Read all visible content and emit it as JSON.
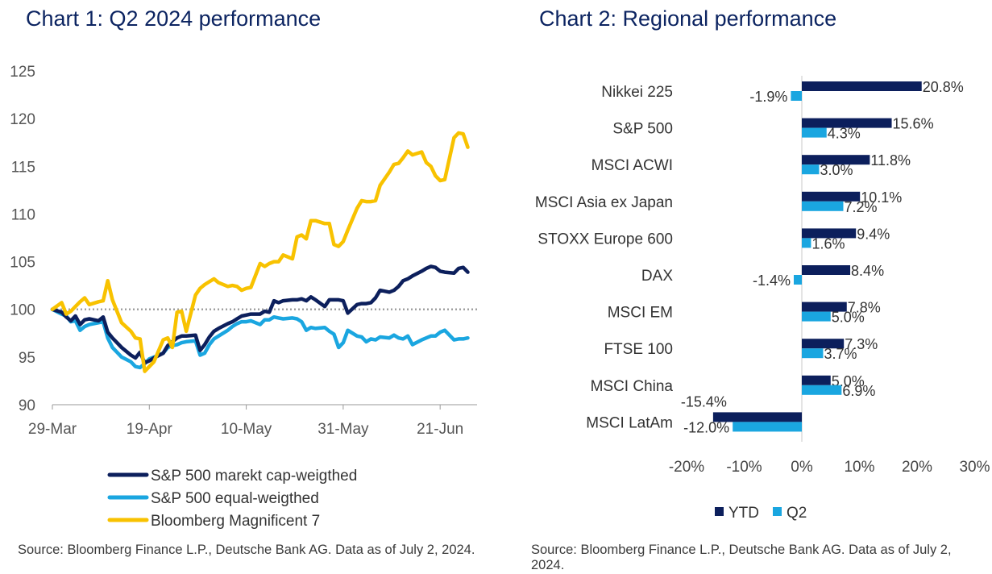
{
  "chart_data": [
    {
      "type": "line",
      "title": "Chart 1: Q2 2024 performance",
      "xlabel": "",
      "ylabel": "",
      "ylim": [
        90,
        125
      ],
      "yticks": [
        "125",
        "120",
        "115",
        "110",
        "105",
        "100",
        "95",
        "90"
      ],
      "xticks": [
        "29-Mar",
        "19-Apr",
        "10-May",
        "31-May",
        "21-Jun"
      ],
      "x_range_days": [
        0,
        92
      ],
      "x_tick_days": [
        0,
        21,
        42,
        63,
        84
      ],
      "reference_line": 100,
      "legend_position": "bottom",
      "series": [
        {
          "name": "S&P 500 marekt cap-weigthed",
          "color": "#0c1f5c",
          "x_days": [
            0,
            2,
            3,
            4,
            5,
            6,
            7,
            8,
            10,
            11,
            12,
            13,
            14,
            15,
            17,
            18,
            19,
            20,
            21,
            22,
            24,
            25,
            26,
            27,
            28,
            29,
            31,
            32,
            33,
            34,
            35,
            36,
            38,
            39,
            40,
            41,
            42,
            43,
            45,
            46,
            47,
            48,
            49,
            50,
            52,
            53,
            54,
            55,
            56,
            57,
            59,
            60,
            61,
            62,
            63,
            64,
            66,
            67,
            68,
            69,
            70,
            71,
            73,
            74,
            75,
            76,
            77,
            78,
            80,
            81,
            82,
            83,
            84,
            85,
            87,
            88,
            89,
            90
          ],
          "values": [
            100.0,
            99.7,
            99.2,
            98.8,
            99.3,
            98.4,
            98.9,
            99.0,
            98.8,
            99.2,
            97.6,
            97.0,
            96.5,
            96.0,
            95.2,
            94.9,
            95.5,
            94.4,
            94.6,
            94.9,
            95.4,
            96.2,
            96.6,
            97.0,
            97.2,
            97.2,
            97.3,
            95.7,
            96.3,
            97.1,
            97.7,
            98.0,
            98.5,
            98.7,
            99.0,
            99.3,
            99.4,
            99.5,
            99.5,
            99.8,
            99.7,
            100.9,
            100.7,
            100.9,
            101.0,
            101.0,
            101.1,
            100.9,
            101.3,
            101.0,
            100.3,
            101.0,
            101.0,
            101.0,
            100.9,
            99.6,
            100.5,
            100.6,
            100.6,
            100.7,
            101.2,
            102.0,
            101.8,
            102.0,
            102.4,
            103.0,
            103.2,
            103.5,
            104.0,
            104.3,
            104.5,
            104.4,
            104.0,
            103.9,
            103.8,
            104.3,
            104.4,
            103.9
          ]
        },
        {
          "name": "S&P 500 equal-weigthed",
          "color": "#1aa6e0",
          "x_days": [
            0,
            2,
            3,
            4,
            5,
            6,
            7,
            8,
            10,
            11,
            12,
            13,
            14,
            15,
            17,
            18,
            19,
            20,
            21,
            22,
            24,
            25,
            26,
            27,
            28,
            29,
            31,
            32,
            33,
            34,
            35,
            36,
            38,
            39,
            40,
            41,
            42,
            43,
            45,
            46,
            47,
            48,
            49,
            50,
            52,
            53,
            54,
            55,
            56,
            57,
            59,
            60,
            61,
            62,
            63,
            64,
            66,
            67,
            68,
            69,
            70,
            71,
            73,
            74,
            75,
            76,
            77,
            78,
            80,
            81,
            82,
            83,
            84,
            85,
            87,
            88,
            89,
            90
          ],
          "values": [
            100.0,
            99.5,
            99.3,
            98.7,
            98.8,
            97.8,
            98.2,
            98.4,
            98.6,
            98.7,
            97.0,
            96.0,
            95.5,
            95.0,
            94.5,
            94.0,
            93.9,
            94.3,
            94.8,
            95.0,
            95.4,
            96.0,
            96.2,
            96.3,
            96.5,
            96.6,
            96.7,
            95.2,
            95.4,
            96.3,
            96.9,
            97.2,
            97.8,
            98.2,
            98.5,
            98.7,
            98.7,
            98.8,
            98.4,
            98.9,
            98.9,
            99.2,
            99.1,
            99.0,
            99.1,
            99.0,
            98.7,
            97.8,
            98.1,
            98.0,
            98.1,
            97.7,
            97.4,
            96.0,
            96.5,
            97.8,
            97.2,
            97.1,
            96.6,
            96.9,
            96.8,
            97.1,
            97.0,
            97.3,
            97.0,
            96.9,
            97.2,
            96.3,
            96.8,
            97.0,
            97.2,
            97.2,
            97.6,
            97.8,
            96.8,
            96.9,
            96.9,
            97.0
          ]
        },
        {
          "name": "Bloomberg Magnificent 7",
          "color": "#f8c200",
          "x_days": [
            0,
            2,
            3,
            4,
            5,
            6,
            7,
            8,
            10,
            11,
            12,
            13,
            14,
            15,
            17,
            18,
            19,
            20,
            21,
            22,
            24,
            25,
            26,
            27,
            28,
            29,
            31,
            32,
            33,
            34,
            35,
            36,
            38,
            39,
            40,
            41,
            42,
            43,
            45,
            46,
            47,
            48,
            49,
            50,
            52,
            53,
            54,
            55,
            56,
            57,
            59,
            60,
            61,
            62,
            63,
            64,
            66,
            67,
            68,
            69,
            70,
            71,
            73,
            74,
            75,
            76,
            77,
            78,
            80,
            81,
            82,
            83,
            84,
            85,
            87,
            88,
            89,
            90
          ],
          "values": [
            100.0,
            100.7,
            99.5,
            99.8,
            100.3,
            100.8,
            101.2,
            100.5,
            100.8,
            100.9,
            103.0,
            101.0,
            99.8,
            98.6,
            97.7,
            97.0,
            96.9,
            93.5,
            94.0,
            94.5,
            96.8,
            97.0,
            96.0,
            99.7,
            99.8,
            97.7,
            101.5,
            102.2,
            102.6,
            102.9,
            103.2,
            102.8,
            102.4,
            102.5,
            102.4,
            102.0,
            102.2,
            102.3,
            104.8,
            104.5,
            104.8,
            105.0,
            105.0,
            105.7,
            105.3,
            107.6,
            107.8,
            107.4,
            109.3,
            109.3,
            109.0,
            109.0,
            106.8,
            106.6,
            107.1,
            108.3,
            110.6,
            111.4,
            111.3,
            111.3,
            111.4,
            113.0,
            114.4,
            115.2,
            115.3,
            115.9,
            116.6,
            116.2,
            116.5,
            115.4,
            115.0,
            114.0,
            113.5,
            113.6,
            118.0,
            118.5,
            118.4,
            117.0
          ]
        }
      ]
    },
    {
      "type": "bar",
      "orientation": "horizontal",
      "title": "Chart 2: Regional performance",
      "xlabel": "",
      "ylabel": "",
      "xlim": [
        -20,
        30
      ],
      "xticks": [
        "-20%",
        "-10%",
        "0%",
        "10%",
        "20%",
        "30%"
      ],
      "legend_position": "bottom",
      "categories": [
        "Nikkei 225",
        "S&P 500",
        "MSCI ACWI",
        "MSCI Asia ex Japan",
        "STOXX Europe 600",
        "DAX",
        "MSCI EM",
        "FTSE 100",
        "MSCI China",
        "MSCI LatAm"
      ],
      "series": [
        {
          "name": "YTD",
          "color": "#0c1f5c",
          "values": [
            20.8,
            15.6,
            11.8,
            10.1,
            9.4,
            8.4,
            7.8,
            7.3,
            5.0,
            -15.4
          ],
          "labels": [
            "20.8%",
            "15.6%",
            "11.8%",
            "10.1%",
            "9.4%",
            "8.4%",
            "7.8%",
            "7.3%",
            "5.0%",
            "-15.4%"
          ]
        },
        {
          "name": "Q2",
          "color": "#1aa6e0",
          "values": [
            -1.9,
            4.3,
            3.0,
            7.2,
            1.6,
            -1.4,
            5.0,
            3.7,
            6.9,
            -12.0
          ],
          "labels": [
            "-1.9%",
            "4.3%",
            "3.0%",
            "7.2%",
            "1.6%",
            "-1.4%",
            "5.0%",
            "3.7%",
            "6.9%",
            "-12.0%"
          ]
        }
      ]
    }
  ],
  "sources": {
    "chart1": "Source: Bloomberg Finance L.P., Deutsche Bank AG. Data as of July 2, 2024.",
    "chart2": "Source: Bloomberg Finance L.P., Deutsche Bank AG. Data as of July 2, 2024."
  }
}
